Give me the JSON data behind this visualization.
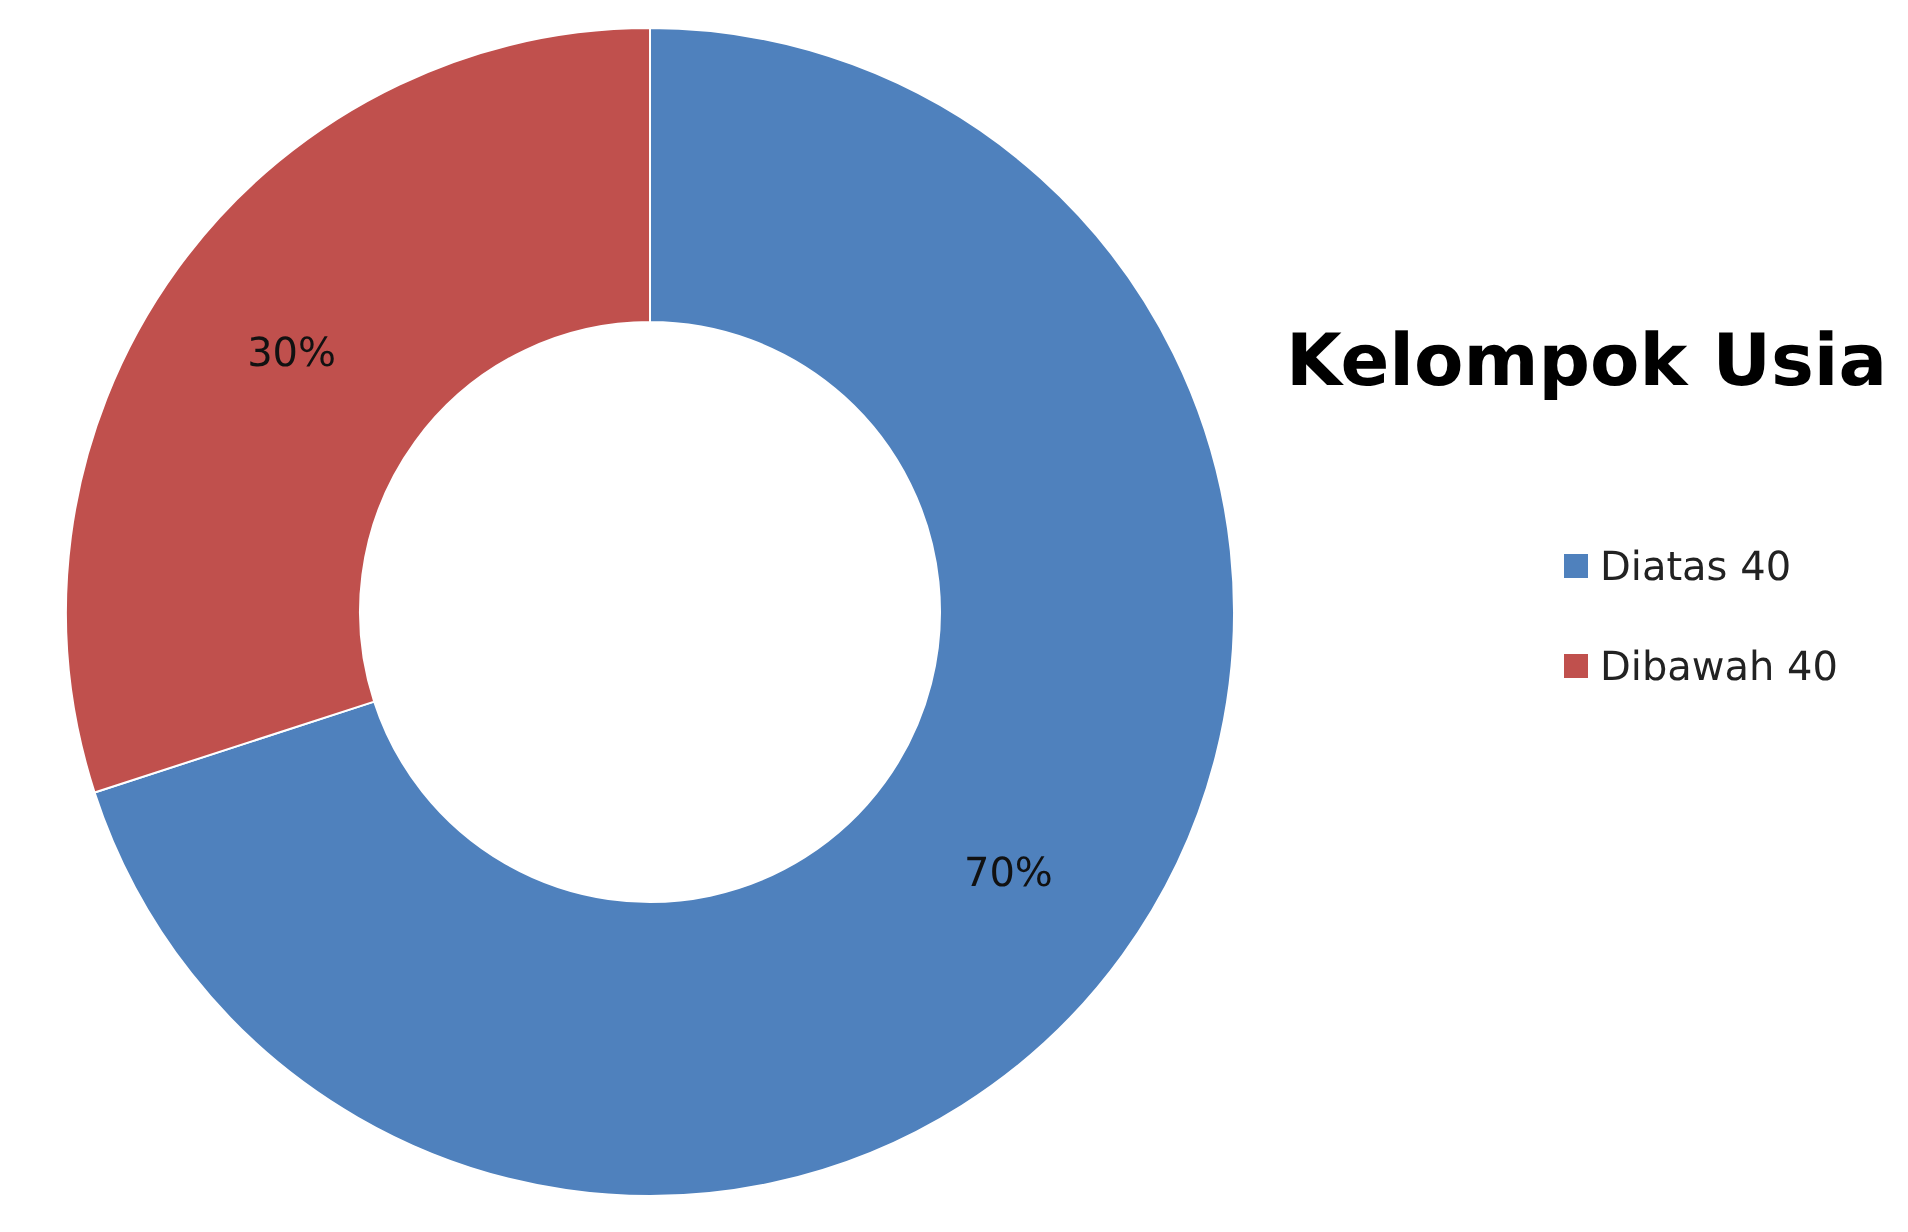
{
  "chart_data": {
    "type": "donut",
    "title": "Kelompok Usia",
    "categories": [
      "Diatas 40",
      "Dibawah 40"
    ],
    "values": [
      70,
      30
    ],
    "colors": [
      "#4f81bd",
      "#c0504d"
    ],
    "value_labels": [
      "70%",
      "30%"
    ],
    "legend": "right"
  }
}
